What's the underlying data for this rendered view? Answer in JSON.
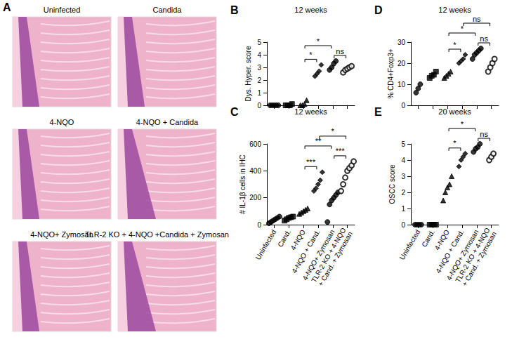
{
  "panel_a": {
    "label": "A",
    "images": [
      "Uninfected",
      "Candida",
      "4-NQO",
      "4-NQO + Candida",
      "4-NQO+ Zymosan",
      "TLR-2 KO + 4-NQO +Candida + Zymosan"
    ]
  },
  "chart_data": [
    {
      "type": "scatter",
      "panel": "B",
      "title": "12 weeks",
      "y_label": "Dys. Hyper. score",
      "categories": [
        null,
        null,
        null,
        null,
        null,
        null
      ],
      "groups": [
        {
          "marker": "circle",
          "values": [
            0,
            0,
            0,
            0,
            0
          ]
        },
        {
          "marker": "square",
          "values": [
            0,
            0,
            0,
            0.1
          ]
        },
        {
          "marker": "triangle",
          "values": [
            0,
            0,
            0.1,
            0.4
          ]
        },
        {
          "marker": "diamond",
          "values": [
            2.3,
            2.5,
            2.7,
            3.2
          ]
        },
        {
          "marker": "circle",
          "values": [
            2.8,
            3.0,
            3.3,
            3.5
          ]
        },
        {
          "marker": "open circle",
          "values": [
            2.6,
            2.8,
            2.9,
            3.0,
            3.1
          ]
        }
      ],
      "ylim": [
        0,
        5
      ],
      "yticks": [
        0,
        1,
        2,
        3,
        4,
        5
      ],
      "grid": false,
      "tick_labels": "y",
      "annotations": [
        {
          "from": 2,
          "to": 3,
          "text": "*"
        },
        {
          "from": 2,
          "to": 4,
          "text": "*"
        },
        {
          "from": 4,
          "to": 5,
          "text": "ns"
        }
      ]
    },
    {
      "type": "scatter",
      "panel": "C",
      "title": "12 weeks",
      "y_label": "# IL-1β cells in IHC",
      "categories": [
        "Uninfected",
        "Cand.",
        "4-NQO",
        "4-NQO + Cand.",
        "4-NQO+ Zymosan",
        "TLR-2 KO + 4-NQO\n+ Cand. + Zymosan"
      ],
      "groups": [
        {
          "marker": "circle",
          "values": [
            10,
            20,
            30,
            40,
            50,
            60
          ]
        },
        {
          "marker": "square",
          "values": [
            30,
            40,
            50,
            55,
            60
          ]
        },
        {
          "marker": "triangle",
          "values": [
            80,
            90,
            100,
            110,
            120
          ]
        },
        {
          "marker": "diamond",
          "values": [
            250,
            270,
            300,
            330,
            390
          ]
        },
        {
          "marker": "circle",
          "values": [
            20,
            150,
            180,
            200,
            220,
            240
          ]
        },
        {
          "marker": "open circle",
          "values": [
            250,
            300,
            350,
            400,
            420,
            440,
            470
          ]
        }
      ],
      "ylim": [
        0,
        600
      ],
      "yticks": [
        0,
        200,
        400,
        600
      ],
      "grid": false,
      "annotations": [
        {
          "from": 2,
          "to": 3,
          "text": "***"
        },
        {
          "from": 2,
          "to": 4,
          "text": "**"
        },
        {
          "from": 3,
          "to": 5,
          "text": "*"
        },
        {
          "from": 4,
          "to": 5,
          "text": "***"
        }
      ]
    },
    {
      "type": "scatter",
      "panel": "D",
      "title": "12 weeks",
      "y_label": "% CD4+Foxp3+",
      "categories": [
        null,
        null,
        null,
        null,
        null,
        null
      ],
      "groups": [
        {
          "marker": "circle",
          "values": [
            6,
            8,
            10
          ]
        },
        {
          "marker": "square",
          "values": [
            13,
            14,
            14.5,
            16
          ]
        },
        {
          "marker": "triangle",
          "values": [
            13,
            14,
            15,
            16
          ]
        },
        {
          "marker": "diamond",
          "values": [
            20,
            21,
            22,
            24
          ]
        },
        {
          "marker": "circle",
          "values": [
            22,
            24,
            25,
            26,
            27
          ]
        },
        {
          "marker": "open circle",
          "values": [
            16,
            18,
            20,
            22
          ]
        }
      ],
      "ylim": [
        0,
        30
      ],
      "yticks": [
        0,
        10,
        20,
        30
      ],
      "grid": false,
      "tick_labels": "y",
      "annotations": [
        {
          "from": 2,
          "to": 3,
          "text": "*"
        },
        {
          "from": 2,
          "to": 4,
          "text": "*"
        },
        {
          "from": 3,
          "to": 5,
          "text": "ns"
        },
        {
          "from": 4,
          "to": 5,
          "text": "ns"
        }
      ]
    },
    {
      "type": "scatter",
      "panel": "E",
      "title": "20 weeks",
      "y_label": "OSCC score",
      "categories": [
        "Uninfected",
        "Cand.",
        "4-NQO",
        "4-NQO + Cand.",
        "4-NQO+ Zymosan",
        "TLR-2 KO + 4-NQO\n+ Cand. + Zymosan"
      ],
      "groups": [
        {
          "marker": "circle",
          "values": [
            0,
            0,
            0,
            0
          ]
        },
        {
          "marker": "square",
          "values": [
            0,
            0,
            0,
            0
          ]
        },
        {
          "marker": "triangle",
          "values": [
            1.5,
            2,
            2.3,
            2.5,
            3
          ]
        },
        {
          "marker": "diamond",
          "values": [
            3.6,
            4,
            4.2,
            4.4
          ]
        },
        {
          "marker": "circle",
          "values": [
            4.5,
            4.7,
            4.8,
            5
          ]
        },
        {
          "marker": "open circle",
          "values": [
            4,
            4.2,
            4.4
          ]
        }
      ],
      "ylim": [
        0,
        5
      ],
      "yticks": [
        0,
        1,
        2,
        3,
        4,
        5
      ],
      "grid": false,
      "annotations": [
        {
          "from": 2,
          "to": 3,
          "text": "*"
        },
        {
          "from": 2,
          "to": 4,
          "text": "*"
        },
        {
          "from": 4,
          "to": 5,
          "text": "ns"
        }
      ]
    }
  ]
}
